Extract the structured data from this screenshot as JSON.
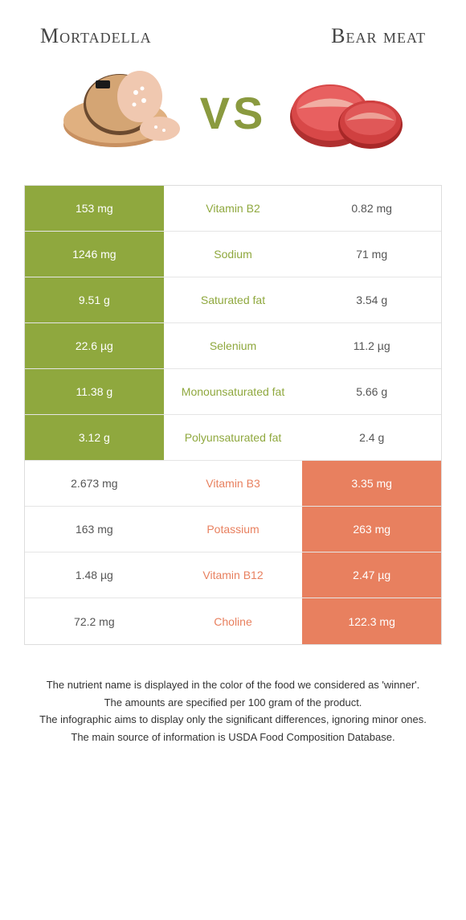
{
  "header": {
    "left": "Mortadella",
    "right": "Bear meat"
  },
  "vs": "VS",
  "colors": {
    "green": "#8fa83e",
    "orange": "#e8805f",
    "vs": "#8a9a3f"
  },
  "rows": [
    {
      "left": "153 mg",
      "mid": "Vitamin B2",
      "right": "0.82 mg",
      "winner": "left"
    },
    {
      "left": "1246 mg",
      "mid": "Sodium",
      "right": "71 mg",
      "winner": "left"
    },
    {
      "left": "9.51 g",
      "mid": "Saturated fat",
      "right": "3.54 g",
      "winner": "left"
    },
    {
      "left": "22.6 µg",
      "mid": "Selenium",
      "right": "11.2 µg",
      "winner": "left"
    },
    {
      "left": "11.38 g",
      "mid": "Monounsaturated fat",
      "right": "5.66 g",
      "winner": "left"
    },
    {
      "left": "3.12 g",
      "mid": "Polyunsaturated fat",
      "right": "2.4 g",
      "winner": "left"
    },
    {
      "left": "2.673 mg",
      "mid": "Vitamin B3",
      "right": "3.35 mg",
      "winner": "right"
    },
    {
      "left": "163 mg",
      "mid": "Potassium",
      "right": "263 mg",
      "winner": "right"
    },
    {
      "left": "1.48 µg",
      "mid": "Vitamin B12",
      "right": "2.47 µg",
      "winner": "right"
    },
    {
      "left": "72.2 mg",
      "mid": "Choline",
      "right": "122.3 mg",
      "winner": "right"
    }
  ],
  "footer": {
    "line1": "The nutrient name is displayed in the color of the food we considered as 'winner'.",
    "line2": "The amounts are specified per 100 gram of the product.",
    "line3": "The infographic aims to display only the significant differences, ignoring minor ones.",
    "line4": "The main source of information is USDA Food Composition Database."
  }
}
